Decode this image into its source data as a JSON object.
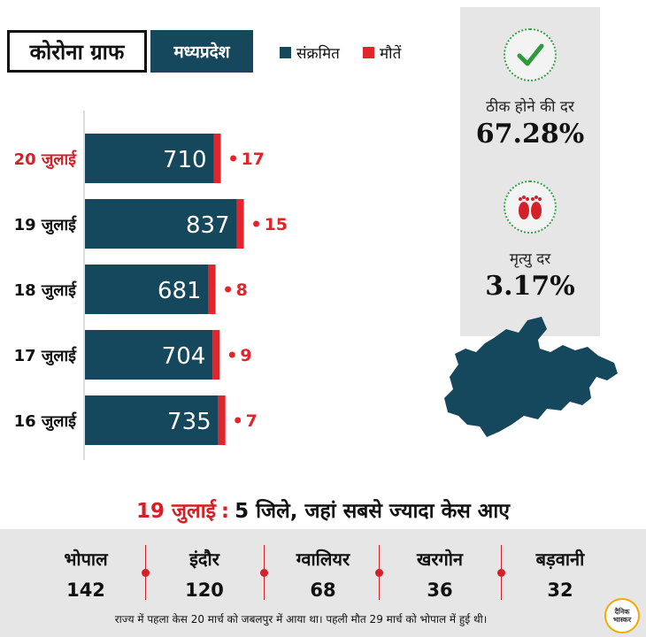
{
  "header": {
    "title": "कोरोना ग्राफ",
    "state": "मध्यप्रदेश",
    "legend": [
      {
        "label": "संक्रमित",
        "color": "#15485c"
      },
      {
        "label": "मौतें",
        "color": "#e3242b"
      }
    ]
  },
  "stats": {
    "recovery_label": "ठीक होने की दर",
    "recovery_value": "67.28%",
    "recovery_icon": "checkmark-icon",
    "death_label": "मृत्यु दर",
    "death_value": "3.17%",
    "death_icon": "footprints-icon"
  },
  "chart_data": {
    "type": "bar",
    "orientation": "horizontal",
    "stacked": true,
    "categories": [
      "20 जुलाई",
      "19 जुलाई",
      "18 जुलाई",
      "17 जुलाई",
      "16 जुलाई"
    ],
    "highlight_category": "20 जुलाई",
    "series": [
      {
        "name": "संक्रमित",
        "color": "#15485c",
        "values": [
          710,
          837,
          681,
          704,
          735
        ]
      },
      {
        "name": "मौतें",
        "color": "#e3242b",
        "values": [
          17,
          15,
          8,
          9,
          7
        ]
      }
    ],
    "death_labels": [
      "17",
      "15",
      "8",
      "9",
      "7"
    ]
  },
  "districts": {
    "date": "19 जुलाई",
    "separator": ":",
    "heading": "5 जिले, जहां सबसे ज्यादा केस आए",
    "items": [
      {
        "name": "भोपाल",
        "cases": "142"
      },
      {
        "name": "इंदौर",
        "cases": "120"
      },
      {
        "name": "ग्वालियर",
        "cases": "68"
      },
      {
        "name": "खरगोन",
        "cases": "36"
      },
      {
        "name": "बड़वानी",
        "cases": "32"
      }
    ]
  },
  "footer": {
    "note": "राज्य में पहला केस 20 मार्च को जबलपुर में आया था। पहली मौत 29 मार्च को भोपाल में हुई थी।",
    "logo_line1": "दैनिक",
    "logo_line2": "भास्कर"
  },
  "colors": {
    "infected": "#15485c",
    "deaths": "#e3242b",
    "accent_red": "#d42027",
    "panel_gray": "#e6e6e6"
  }
}
